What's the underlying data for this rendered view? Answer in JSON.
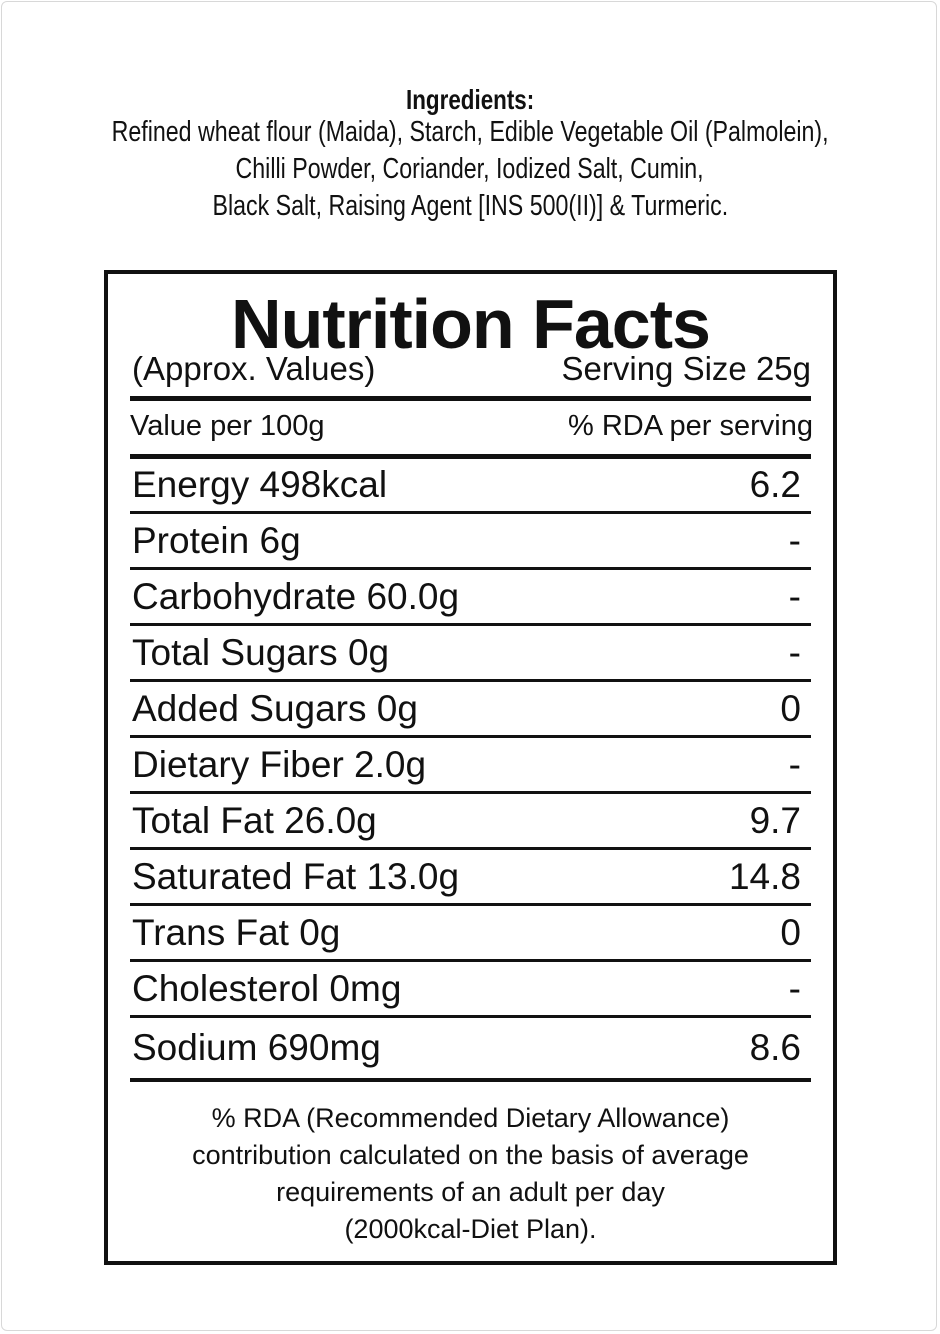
{
  "ingredients": {
    "title": "Ingredients:",
    "lines": [
      "Refined wheat flour (Maida), Starch, Edible Vegetable Oil (Palmolein),",
      "Chilli Powder, Coriander,  Iodized Salt, Cumin,",
      "Black Salt, Raising Agent [INS 500(II)] & Turmeric."
    ]
  },
  "nutrition": {
    "title": "Nutrition Facts",
    "approx": "(Approx. Values)",
    "serving_size": "Serving Size 25g",
    "col_left": "Value per 100g",
    "col_right": "% RDA per serving",
    "rows": [
      {
        "label": "Energy 498kcal",
        "rda": "6.2"
      },
      {
        "label": "Protein 6g",
        "rda": "-"
      },
      {
        "label": "Carbohydrate 60.0g",
        "rda": "-"
      },
      {
        "label": "Total Sugars 0g",
        "rda": "-"
      },
      {
        "label": "Added Sugars 0g",
        "rda": "0"
      },
      {
        "label": "Dietary Fiber 2.0g",
        "rda": "-"
      },
      {
        "label": "Total Fat 26.0g",
        "rda": "9.7"
      },
      {
        "label": "Saturated Fat 13.0g",
        "rda": "14.8"
      },
      {
        "label": "Trans Fat 0g",
        "rda": "0"
      },
      {
        "label": "Cholesterol 0mg",
        "rda": "-"
      },
      {
        "label": "Sodium 690mg",
        "rda": "8.6"
      }
    ],
    "footnote": [
      "% RDA (Recommended Dietary Allowance)",
      "contribution calculated on the basis of average",
      "requirements of an adult per day",
      "(2000kcal-Diet Plan)."
    ]
  }
}
